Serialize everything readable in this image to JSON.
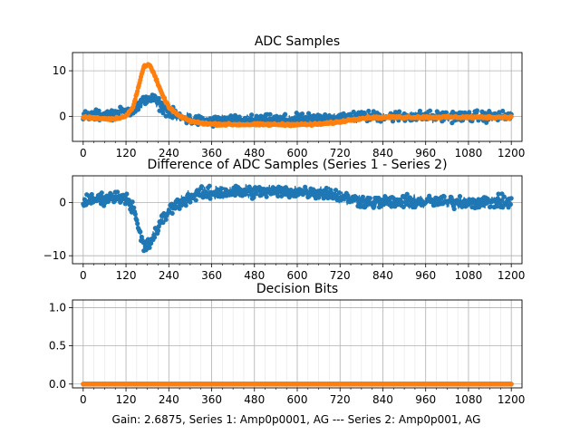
{
  "figure": {
    "caption": "Gain: 2.6875, Series 1: Amp0p0001, AG --- Series 2: Amp0p001, AG"
  },
  "colors": {
    "series1": "#1f77b4",
    "series2": "#ff7f0e",
    "grid": "#b0b0b0"
  },
  "chart_data": [
    {
      "type": "scatter",
      "title": "ADC Samples",
      "xlim": [
        -30,
        1230
      ],
      "ylim": [
        -5.5,
        14
      ],
      "xticks": [
        0,
        120,
        240,
        360,
        480,
        600,
        720,
        840,
        960,
        1080,
        1200
      ],
      "xtick_labels": [
        "0",
        "120",
        "240",
        "360",
        "480",
        "600",
        "720",
        "840",
        "960",
        "1080",
        "1200"
      ],
      "yticks": [
        0,
        10
      ],
      "ytick_labels": [
        "0",
        "10"
      ],
      "grid": true,
      "series": [
        {
          "name": "Series 1",
          "x": [
            0,
            40,
            80,
            120,
            150,
            165,
            180,
            200,
            220,
            240,
            270,
            300,
            350,
            400,
            480,
            560,
            640,
            680,
            720,
            760,
            800,
            880,
            960,
            1040,
            1120,
            1200
          ],
          "y": [
            0,
            0.2,
            0.5,
            1.0,
            1.8,
            3.0,
            4.2,
            3.6,
            2.2,
            1.0,
            -0.2,
            -0.8,
            -1.2,
            -1.0,
            -0.9,
            -0.8,
            -0.6,
            -0.4,
            -0.2,
            0,
            0,
            0,
            0,
            0,
            0,
            0
          ],
          "noise": 1.0
        },
        {
          "name": "Series 2",
          "x": [
            0,
            40,
            80,
            120,
            140,
            155,
            170,
            185,
            200,
            220,
            240,
            270,
            300,
            330,
            360,
            420,
            480,
            560,
            640,
            680,
            720,
            760,
            800,
            880,
            960,
            1040,
            1120,
            1200
          ],
          "y": [
            -0.2,
            -0.4,
            -0.6,
            0.0,
            2.0,
            6.5,
            11.0,
            11.5,
            9.0,
            5.0,
            2.0,
            0.0,
            -1.0,
            -1.5,
            -1.7,
            -1.8,
            -1.8,
            -1.8,
            -1.8,
            -1.6,
            -1.2,
            -0.6,
            -0.3,
            -0.2,
            -0.2,
            -0.2,
            -0.2,
            -0.2
          ],
          "noise": 0.2
        }
      ]
    },
    {
      "type": "scatter",
      "title": "Difference of ADC Samples (Series 1 - Series 2)",
      "xlim": [
        -30,
        1230
      ],
      "ylim": [
        -11.5,
        5
      ],
      "xticks": [
        0,
        120,
        240,
        360,
        480,
        600,
        720,
        840,
        960,
        1080,
        1200
      ],
      "xtick_labels": [
        "0",
        "120",
        "240",
        "360",
        "480",
        "600",
        "720",
        "840",
        "960",
        "1080",
        "1200"
      ],
      "yticks": [
        0,
        -10
      ],
      "ytick_labels": [
        "0",
        "−10"
      ],
      "grid": true,
      "series": [
        {
          "name": "Series 1 - Series 2",
          "x": [
            0,
            40,
            80,
            120,
            140,
            155,
            170,
            185,
            200,
            220,
            240,
            270,
            300,
            330,
            360,
            420,
            480,
            560,
            640,
            680,
            720,
            760,
            800,
            880,
            960,
            1040,
            1120,
            1200
          ],
          "y": [
            0.2,
            0.6,
            1.0,
            1.0,
            -1.0,
            -5.0,
            -8.5,
            -8.0,
            -6.0,
            -3.5,
            -1.5,
            0.0,
            1.0,
            1.6,
            1.8,
            2.0,
            2.0,
            2.0,
            2.0,
            1.8,
            1.2,
            0.5,
            0.1,
            0.1,
            0.1,
            0.1,
            0.1,
            0.1
          ],
          "noise": 1.0
        }
      ]
    },
    {
      "type": "scatter",
      "title": "Decision Bits",
      "xlim": [
        -30,
        1230
      ],
      "ylim": [
        -0.05,
        1.1
      ],
      "xticks": [
        0,
        120,
        240,
        360,
        480,
        600,
        720,
        840,
        960,
        1080,
        1200
      ],
      "xtick_labels": [
        "0",
        "120",
        "240",
        "360",
        "480",
        "600",
        "720",
        "840",
        "960",
        "1080",
        "1200"
      ],
      "yticks": [
        0.0,
        0.5,
        1.0
      ],
      "ytick_labels": [
        "0.0",
        "0.5",
        "1.0"
      ],
      "grid": true,
      "series": [
        {
          "name": "Series 1",
          "x": [
            0,
            1200
          ],
          "y": [
            0,
            0
          ],
          "noise": 0
        },
        {
          "name": "Series 2",
          "x": [
            0,
            1200
          ],
          "y": [
            0,
            0
          ],
          "noise": 0
        }
      ]
    }
  ]
}
